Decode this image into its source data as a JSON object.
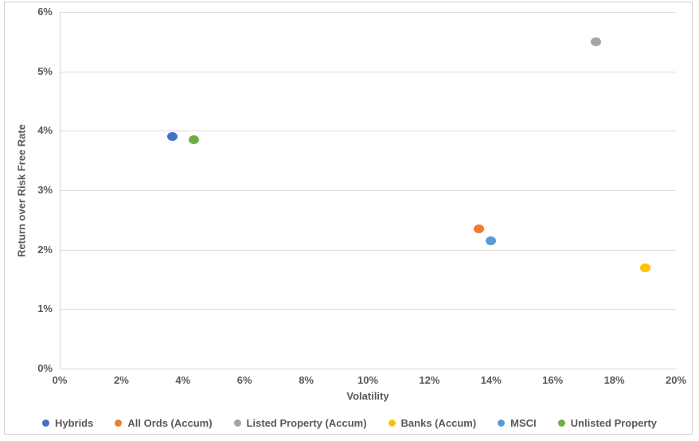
{
  "chart_data": {
    "type": "scatter",
    "title": "",
    "xlabel": "Volatility",
    "ylabel": "Return over Risk Free Rate",
    "xlim": [
      0,
      20
    ],
    "ylim": [
      0,
      6
    ],
    "x_ticks": [
      "0%",
      "2%",
      "4%",
      "6%",
      "8%",
      "10%",
      "12%",
      "14%",
      "16%",
      "18%",
      "20%"
    ],
    "x_tick_values": [
      0,
      2,
      4,
      6,
      8,
      10,
      12,
      14,
      16,
      18,
      20
    ],
    "y_ticks": [
      "0%",
      "1%",
      "2%",
      "3%",
      "4%",
      "5%",
      "6%"
    ],
    "y_tick_values": [
      0,
      1,
      2,
      3,
      4,
      5,
      6
    ],
    "grid": "horizontal",
    "legend_position": "bottom",
    "series": [
      {
        "name": "Hybrids",
        "color": "#4472C4",
        "points": [
          {
            "x": 3.65,
            "y": 3.9
          }
        ]
      },
      {
        "name": "All Ords (Accum)",
        "color": "#ED7D31",
        "points": [
          {
            "x": 13.6,
            "y": 2.35
          }
        ]
      },
      {
        "name": "Listed Property (Accum)",
        "color": "#A5A5A5",
        "points": [
          {
            "x": 17.4,
            "y": 5.5
          }
        ]
      },
      {
        "name": "Banks (Accum)",
        "color": "#FFC000",
        "points": [
          {
            "x": 19.0,
            "y": 1.7
          }
        ]
      },
      {
        "name": "MSCI",
        "color": "#5B9BD5",
        "points": [
          {
            "x": 14.0,
            "y": 2.15
          }
        ]
      },
      {
        "name": "Unlisted Property",
        "color": "#70AD47",
        "points": [
          {
            "x": 4.35,
            "y": 3.85
          }
        ]
      }
    ],
    "colors": {
      "axis_line": "#d6d6d6",
      "gridline": "#dcdcdc",
      "label_text": "#595959",
      "frame_border": "#d0d0d0"
    }
  }
}
